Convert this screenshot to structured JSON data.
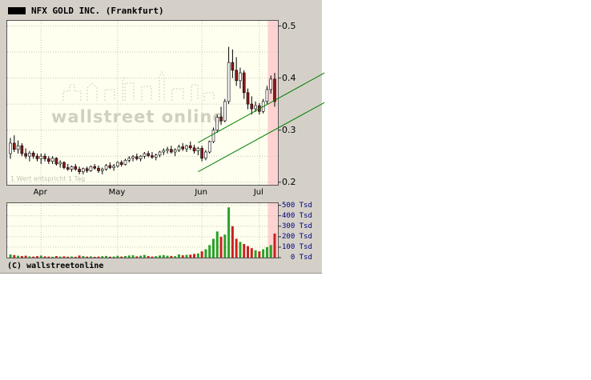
{
  "header": {
    "title": "NFX GOLD INC. (Frankfurt)"
  },
  "colors": {
    "up": "#ffffff",
    "down": "#8b1a1a",
    "wick": "#000000",
    "vol_up": "#2aa12a",
    "vol_down": "#cc2020",
    "trend": "#008000",
    "band": "#ffd2d2",
    "panel": "#d4d0c8",
    "plot_bg": "#fffff0",
    "volume_label": "#000080"
  },
  "chart_data": {
    "type": "candlestick",
    "title": "NFX GOLD INC. (Frankfurt)",
    "watermark": "wallstreet online",
    "footnote": "1 Wert entspricht 1 Tag",
    "copyright": "(C) wallstreetonline",
    "x_ticks": [
      {
        "label": "Apr",
        "index": 8
      },
      {
        "label": "May",
        "index": 28
      },
      {
        "label": "Jun",
        "index": 50
      },
      {
        "label": "Jul",
        "index": 65
      }
    ],
    "y_axis": {
      "ticks": [
        0.5,
        0.4,
        0.3,
        0.2
      ],
      "grid": [
        0.2,
        0.25,
        0.3,
        0.35,
        0.4,
        0.45,
        0.5
      ],
      "ylim": [
        0.195,
        0.51
      ]
    },
    "volume_axis": {
      "ticks": [
        500,
        400,
        300,
        200,
        100,
        0
      ],
      "grid": [
        100,
        200,
        300,
        400,
        500
      ],
      "unit": "Tsd",
      "ylim": [
        0,
        520
      ]
    },
    "highlight_band": {
      "from_index": 67.2,
      "to_index": 69.8
    },
    "trendlines": [
      {
        "from": {
          "index": 49,
          "price": 0.22
        },
        "to": {
          "index": 82,
          "price": 0.353
        }
      },
      {
        "from": {
          "index": 49,
          "price": 0.276
        },
        "to": {
          "index": 82,
          "price": 0.41
        }
      }
    ],
    "candles": [
      [
        0.255,
        0.285,
        0.245,
        0.275,
        30
      ],
      [
        0.275,
        0.29,
        0.258,
        0.263,
        24
      ],
      [
        0.263,
        0.28,
        0.255,
        0.27,
        18
      ],
      [
        0.27,
        0.275,
        0.25,
        0.255,
        15
      ],
      [
        0.255,
        0.265,
        0.245,
        0.25,
        18
      ],
      [
        0.25,
        0.26,
        0.24,
        0.256,
        12
      ],
      [
        0.256,
        0.26,
        0.245,
        0.25,
        10
      ],
      [
        0.25,
        0.255,
        0.24,
        0.245,
        14
      ],
      [
        0.245,
        0.255,
        0.235,
        0.25,
        20
      ],
      [
        0.25,
        0.255,
        0.24,
        0.245,
        12
      ],
      [
        0.245,
        0.25,
        0.235,
        0.24,
        10
      ],
      [
        0.24,
        0.25,
        0.235,
        0.246,
        8
      ],
      [
        0.246,
        0.248,
        0.232,
        0.235,
        15
      ],
      [
        0.235,
        0.242,
        0.228,
        0.238,
        10
      ],
      [
        0.238,
        0.24,
        0.225,
        0.228,
        12
      ],
      [
        0.228,
        0.235,
        0.222,
        0.225,
        9
      ],
      [
        0.225,
        0.232,
        0.22,
        0.23,
        11
      ],
      [
        0.23,
        0.235,
        0.222,
        0.225,
        8
      ],
      [
        0.225,
        0.23,
        0.215,
        0.22,
        20
      ],
      [
        0.22,
        0.228,
        0.215,
        0.226,
        15
      ],
      [
        0.226,
        0.23,
        0.218,
        0.222,
        10
      ],
      [
        0.222,
        0.232,
        0.22,
        0.23,
        12
      ],
      [
        0.23,
        0.235,
        0.224,
        0.227,
        8
      ],
      [
        0.227,
        0.232,
        0.218,
        0.222,
        10
      ],
      [
        0.222,
        0.228,
        0.215,
        0.225,
        14
      ],
      [
        0.225,
        0.235,
        0.222,
        0.232,
        16
      ],
      [
        0.232,
        0.238,
        0.225,
        0.228,
        9
      ],
      [
        0.228,
        0.235,
        0.222,
        0.231,
        11
      ],
      [
        0.231,
        0.24,
        0.228,
        0.238,
        18
      ],
      [
        0.238,
        0.242,
        0.23,
        0.234,
        10
      ],
      [
        0.234,
        0.245,
        0.232,
        0.242,
        15
      ],
      [
        0.242,
        0.25,
        0.238,
        0.246,
        20
      ],
      [
        0.246,
        0.252,
        0.24,
        0.249,
        22
      ],
      [
        0.249,
        0.255,
        0.242,
        0.245,
        12
      ],
      [
        0.245,
        0.252,
        0.24,
        0.25,
        18
      ],
      [
        0.25,
        0.258,
        0.245,
        0.255,
        25
      ],
      [
        0.255,
        0.26,
        0.248,
        0.251,
        15
      ],
      [
        0.251,
        0.258,
        0.245,
        0.248,
        10
      ],
      [
        0.248,
        0.255,
        0.242,
        0.252,
        14
      ],
      [
        0.252,
        0.26,
        0.248,
        0.258,
        20
      ],
      [
        0.258,
        0.265,
        0.252,
        0.261,
        24
      ],
      [
        0.261,
        0.268,
        0.255,
        0.263,
        18
      ],
      [
        0.263,
        0.27,
        0.255,
        0.258,
        16
      ],
      [
        0.258,
        0.265,
        0.25,
        0.262,
        14
      ],
      [
        0.262,
        0.272,
        0.258,
        0.268,
        30
      ],
      [
        0.268,
        0.275,
        0.26,
        0.264,
        22
      ],
      [
        0.264,
        0.272,
        0.258,
        0.27,
        26
      ],
      [
        0.27,
        0.278,
        0.262,
        0.266,
        28
      ],
      [
        0.266,
        0.272,
        0.255,
        0.26,
        35
      ],
      [
        0.26,
        0.268,
        0.252,
        0.265,
        40
      ],
      [
        0.265,
        0.27,
        0.24,
        0.246,
        60
      ],
      [
        0.246,
        0.262,
        0.242,
        0.258,
        80
      ],
      [
        0.258,
        0.28,
        0.255,
        0.278,
        120
      ],
      [
        0.278,
        0.305,
        0.275,
        0.3,
        180
      ],
      [
        0.3,
        0.33,
        0.295,
        0.325,
        250
      ],
      [
        0.325,
        0.345,
        0.31,
        0.318,
        200
      ],
      [
        0.318,
        0.36,
        0.315,
        0.355,
        220
      ],
      [
        0.355,
        0.46,
        0.35,
        0.43,
        480
      ],
      [
        0.43,
        0.455,
        0.4,
        0.415,
        300
      ],
      [
        0.415,
        0.44,
        0.385,
        0.395,
        180
      ],
      [
        0.395,
        0.42,
        0.38,
        0.41,
        150
      ],
      [
        0.41,
        0.415,
        0.36,
        0.372,
        130
      ],
      [
        0.372,
        0.38,
        0.34,
        0.35,
        110
      ],
      [
        0.35,
        0.365,
        0.33,
        0.341,
        90
      ],
      [
        0.341,
        0.355,
        0.335,
        0.347,
        70
      ],
      [
        0.347,
        0.352,
        0.33,
        0.336,
        60
      ],
      [
        0.336,
        0.36,
        0.332,
        0.355,
        80
      ],
      [
        0.355,
        0.385,
        0.35,
        0.378,
        100
      ],
      [
        0.378,
        0.405,
        0.37,
        0.398,
        120
      ],
      [
        0.398,
        0.41,
        0.345,
        0.355,
        230
      ]
    ]
  }
}
